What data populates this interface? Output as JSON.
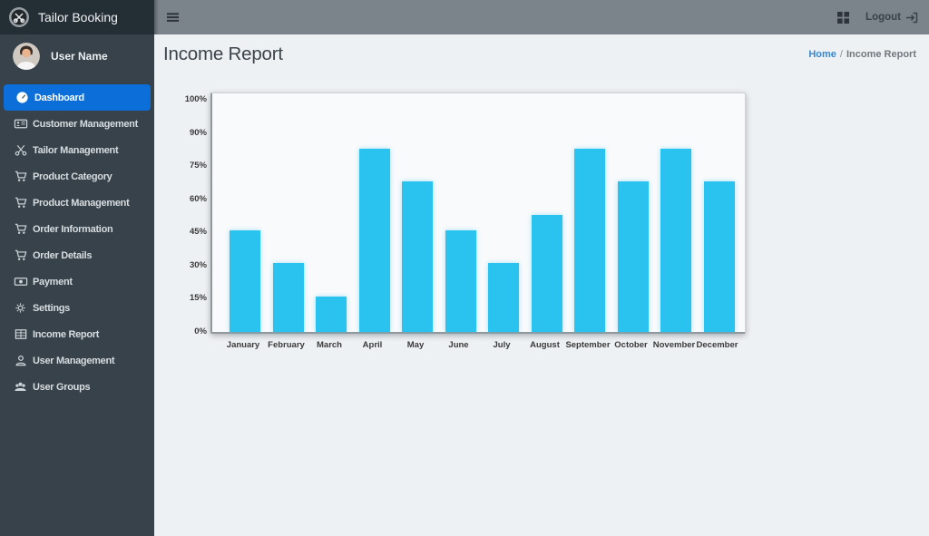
{
  "app": {
    "title": "Tailor Booking"
  },
  "topbar": {
    "logout_label": "Logout"
  },
  "sidebar": {
    "user": {
      "name": "User Name"
    },
    "items": [
      {
        "label": "Dashboard",
        "icon": "gauge-icon",
        "active": true
      },
      {
        "label": "Customer Management",
        "icon": "id-card-icon",
        "active": false
      },
      {
        "label": "Tailor Management",
        "icon": "scissors-icon",
        "active": false
      },
      {
        "label": "Product Category",
        "icon": "cart-icon",
        "active": false
      },
      {
        "label": "Product Management",
        "icon": "cart-icon",
        "active": false
      },
      {
        "label": "Order Information",
        "icon": "shopping-cart-icon",
        "active": false
      },
      {
        "label": "Order Details",
        "icon": "shopping-cart-icon",
        "active": false
      },
      {
        "label": "Payment",
        "icon": "money-icon",
        "active": false
      },
      {
        "label": "Settings",
        "icon": "gear-icon",
        "active": false
      },
      {
        "label": "Income Report",
        "icon": "report-table-icon",
        "active": false
      },
      {
        "label": "User Management",
        "icon": "user-icon",
        "active": false
      },
      {
        "label": "User Groups",
        "icon": "users-icon",
        "active": false
      }
    ]
  },
  "page": {
    "title": "Income Report",
    "breadcrumb": {
      "home": "Home",
      "separator": "/",
      "current": "Income Report"
    }
  },
  "chart_data": {
    "type": "bar",
    "categories": [
      "January",
      "February",
      "March",
      "April",
      "May",
      "June",
      "July",
      "August",
      "September",
      "October",
      "November",
      "December"
    ],
    "values": [
      46,
      31,
      16,
      83,
      68,
      46,
      31,
      53,
      83,
      68,
      83,
      68
    ],
    "title": "",
    "xlabel": "",
    "ylabel": "",
    "ylim": [
      0,
      100
    ],
    "ytick_labels": [
      "0%",
      "15%",
      "30%",
      "45%",
      "60%",
      "75%",
      "90%",
      "100%"
    ],
    "ytick_values": [
      0,
      15,
      30,
      45,
      60,
      75,
      90,
      100
    ],
    "bar_color": "#2ac2ee",
    "grid": false,
    "legend": false
  },
  "colors": {
    "sidebar_bg": "#37424a",
    "logo_bg": "#242e35",
    "active_item_bg": "#0c6fd9",
    "topbar_bg": "#7b848a",
    "content_bg": "#eef1f4",
    "bar": "#2ac2ee",
    "breadcrumb_link": "#3a87c8"
  }
}
